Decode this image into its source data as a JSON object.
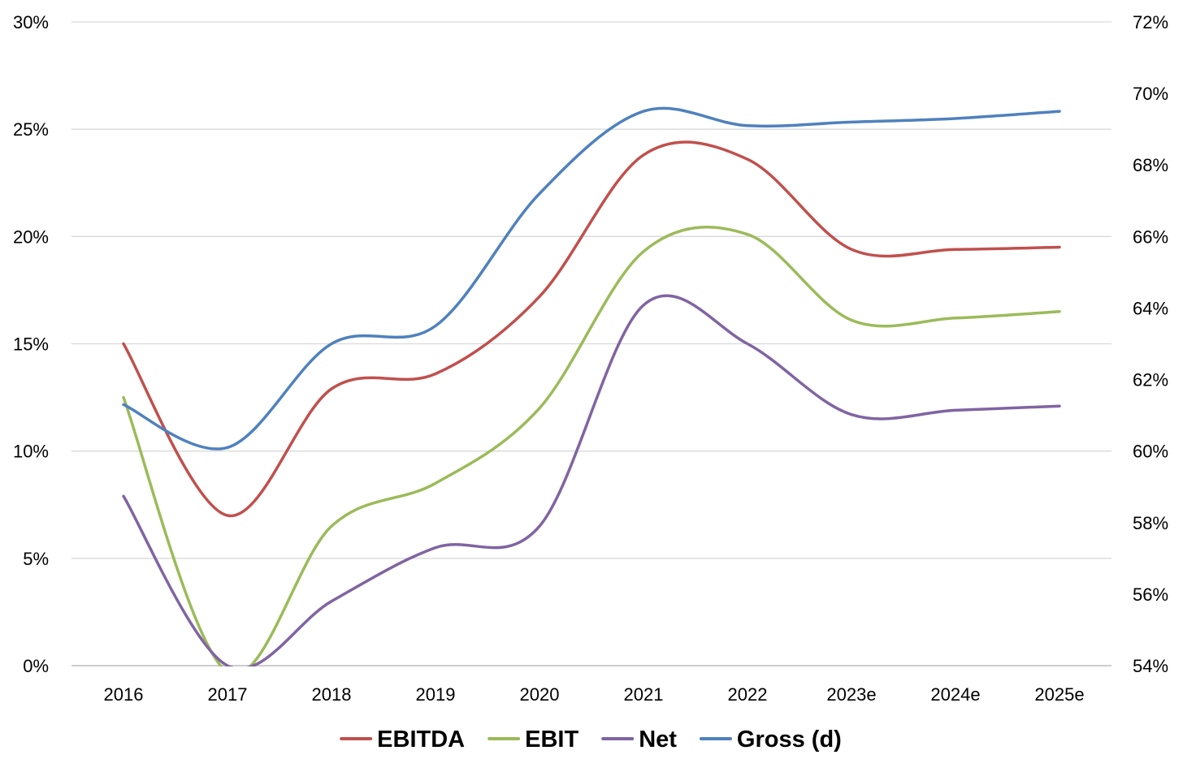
{
  "chart_data": {
    "type": "line",
    "smooth": true,
    "categories": [
      "2016",
      "2017",
      "2018",
      "2019",
      "2020",
      "2021",
      "2022",
      "2023e",
      "2024e",
      "2025e"
    ],
    "y_left": {
      "min": 0,
      "max": 30,
      "step": 5,
      "tick_labels": [
        "0%",
        "5%",
        "10%",
        "15%",
        "20%",
        "25%",
        "30%"
      ]
    },
    "y_right": {
      "min": 54,
      "max": 72,
      "step": 2,
      "tick_labels": [
        "54%",
        "56%",
        "58%",
        "60%",
        "62%",
        "64%",
        "66%",
        "68%",
        "70%",
        "72%"
      ]
    },
    "grid": "horizontal",
    "legend_position": "bottom",
    "series": [
      {
        "name": "EBITDA",
        "axis": "left",
        "color": "#c0504d",
        "values": [
          15.0,
          7.0,
          12.9,
          13.6,
          17.2,
          23.8,
          23.6,
          19.4,
          19.4,
          19.5
        ]
      },
      {
        "name": "EBIT",
        "axis": "left",
        "color": "#9bbb59",
        "values": [
          12.5,
          -0.3,
          6.5,
          8.5,
          12.0,
          19.3,
          20.1,
          16.1,
          16.2,
          16.5
        ]
      },
      {
        "name": "Net",
        "axis": "left",
        "color": "#8064a2",
        "values": [
          7.9,
          0.0,
          3.0,
          5.5,
          6.5,
          16.8,
          15.0,
          11.7,
          11.9,
          12.1
        ]
      },
      {
        "name": "Gross (d)",
        "axis": "right",
        "color": "#4f81bd",
        "values": [
          61.3,
          60.1,
          63.0,
          63.5,
          67.2,
          69.5,
          69.1,
          69.2,
          69.3,
          69.5
        ]
      }
    ]
  }
}
